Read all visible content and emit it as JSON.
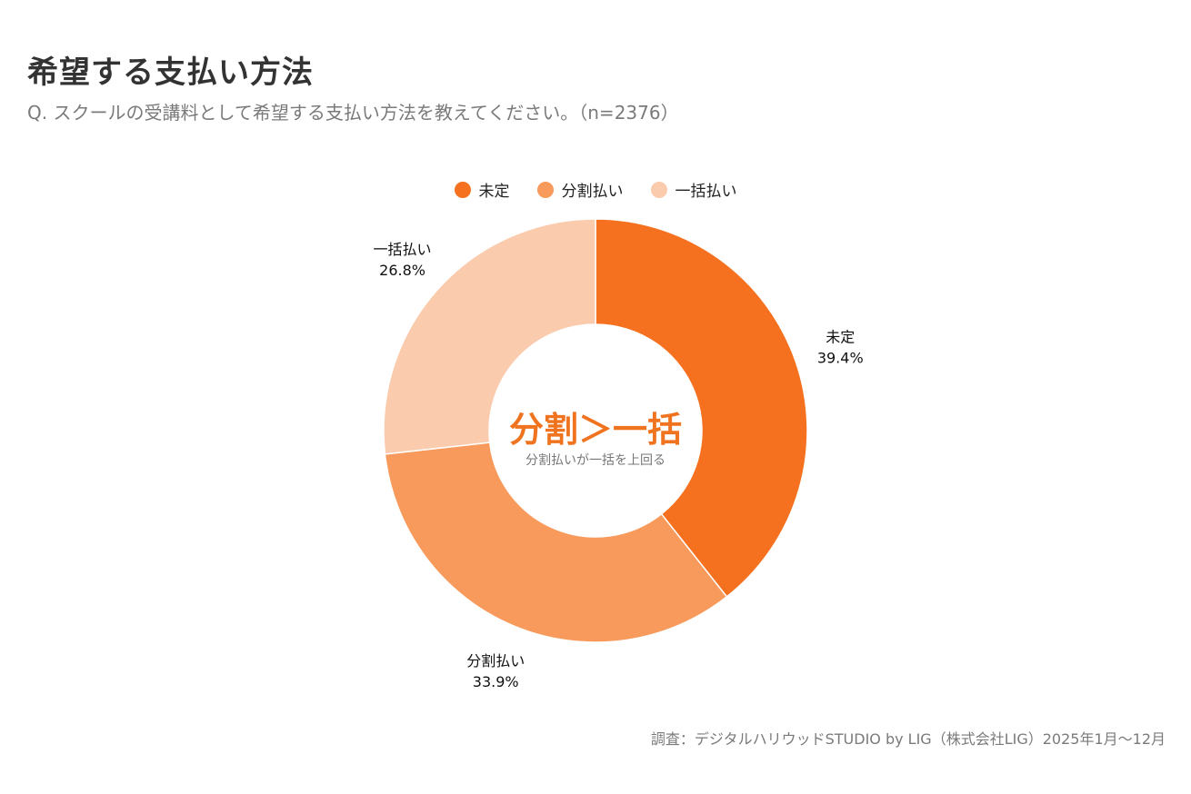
{
  "header": {
    "title": "希望する支払い方法",
    "subtitle": "Q. スクールの受講料として希望する支払い方法を教えてください。（n=2376）"
  },
  "chart_data": {
    "type": "pie",
    "variant": "donut",
    "legend_position": "top-center",
    "series": [
      {
        "name": "未定",
        "value": 39.4,
        "label": "39.4%",
        "color": "#f5711f"
      },
      {
        "name": "分割払い",
        "value": 33.9,
        "label": "33.9%",
        "color": "#f79a5c"
      },
      {
        "name": "一括払い",
        "value": 26.8,
        "label": "26.8%",
        "color": "#fbcbae"
      }
    ],
    "center": {
      "main": "分割＞一括",
      "sub": "分割払いが一括を上回る",
      "main_color": "#f07420"
    }
  },
  "footer": {
    "source": "調査：デジタルハリウッドSTUDIO by LIG（株式会社LIG）2025年1月〜12月"
  }
}
